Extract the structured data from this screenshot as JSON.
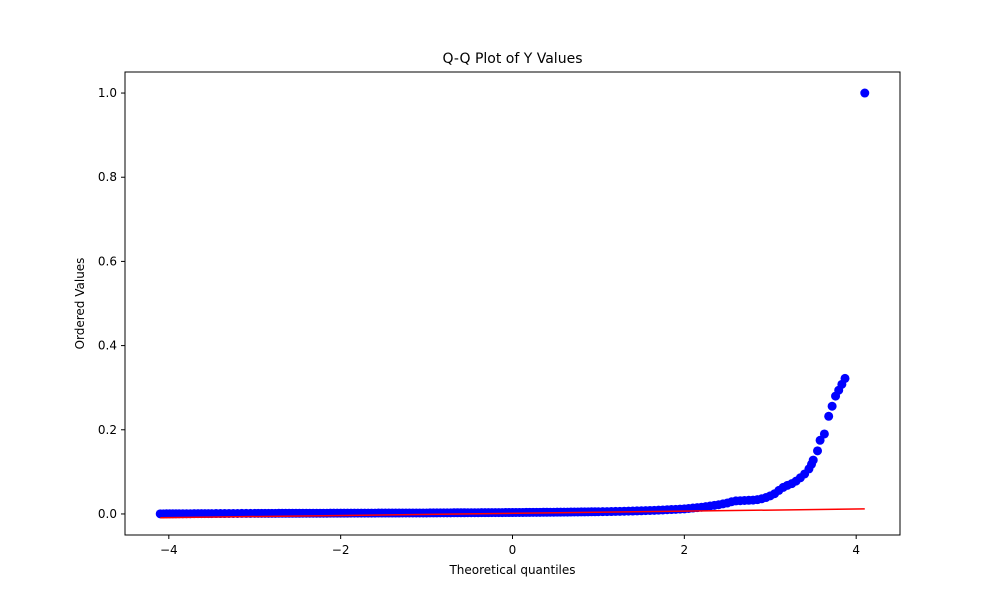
{
  "chart_data": {
    "type": "scatter",
    "title": "Q-Q Plot of Y Values",
    "xlabel": "Theoretical quantiles",
    "ylabel": "Ordered Values",
    "xlim": [
      -4.51,
      4.51
    ],
    "ylim": [
      -0.05,
      1.05
    ],
    "xticks": [
      -4,
      -2,
      0,
      2,
      4
    ],
    "xtick_labels": [
      "−4",
      "−2",
      "0",
      "2",
      "4"
    ],
    "yticks": [
      0.0,
      0.2,
      0.4,
      0.6,
      0.8,
      1.0
    ],
    "ytick_labels": [
      "0.0",
      "0.2",
      "0.4",
      "0.6",
      "0.8",
      "1.0"
    ],
    "grid": false,
    "legend": "none",
    "marker_color": "#0000ff",
    "line_color": "#ff0000",
    "fit_line": {
      "x": [
        -4.1,
        4.1
      ],
      "y": [
        -0.009,
        0.012
      ]
    },
    "points": [
      [
        -4.1,
        0.0003
      ],
      [
        -3.88,
        0.0005
      ],
      [
        -3.75,
        0.0006
      ],
      [
        -3.66,
        0.0007
      ],
      [
        -3.58,
        0.0008
      ],
      [
        -3.5,
        0.0009
      ],
      [
        -3.4,
        0.001
      ],
      [
        -3.3,
        0.0011
      ],
      [
        -3.2,
        0.0012
      ],
      [
        -3.1,
        0.0013
      ],
      [
        -3.0,
        0.0014
      ],
      [
        -2.8,
        0.0015
      ],
      [
        -2.6,
        0.0016
      ],
      [
        -2.4,
        0.0017
      ],
      [
        -2.2,
        0.0018
      ],
      [
        -2.0,
        0.0019
      ],
      [
        -1.8,
        0.002
      ],
      [
        -1.6,
        0.0021
      ],
      [
        -1.4,
        0.0022
      ],
      [
        -1.2,
        0.0023
      ],
      [
        -1.0,
        0.0024
      ],
      [
        -0.8,
        0.0026
      ],
      [
        -0.6,
        0.0028
      ],
      [
        -0.4,
        0.003
      ],
      [
        -0.2,
        0.0032
      ],
      [
        0.0,
        0.0034
      ],
      [
        0.2,
        0.0037
      ],
      [
        0.4,
        0.004
      ],
      [
        0.6,
        0.0044
      ],
      [
        0.8,
        0.0048
      ],
      [
        1.0,
        0.0053
      ],
      [
        1.1,
        0.0056
      ],
      [
        1.2,
        0.006
      ],
      [
        1.3,
        0.0065
      ],
      [
        1.4,
        0.007
      ],
      [
        1.5,
        0.0076
      ],
      [
        1.6,
        0.0083
      ],
      [
        1.7,
        0.009
      ],
      [
        1.8,
        0.01
      ],
      [
        1.9,
        0.011
      ],
      [
        2.0,
        0.012
      ],
      [
        2.1,
        0.014
      ],
      [
        2.2,
        0.016
      ],
      [
        2.3,
        0.019
      ],
      [
        2.4,
        0.022
      ],
      [
        2.5,
        0.026
      ],
      [
        2.55,
        0.029
      ],
      [
        2.6,
        0.031
      ],
      [
        2.7,
        0.032
      ],
      [
        2.8,
        0.033
      ],
      [
        2.85,
        0.034
      ],
      [
        2.9,
        0.036
      ],
      [
        2.95,
        0.039
      ],
      [
        3.0,
        0.043
      ],
      [
        3.05,
        0.048
      ],
      [
        3.1,
        0.056
      ],
      [
        3.15,
        0.063
      ],
      [
        3.2,
        0.068
      ],
      [
        3.25,
        0.072
      ],
      [
        3.3,
        0.078
      ],
      [
        3.35,
        0.086
      ],
      [
        3.4,
        0.095
      ],
      [
        3.45,
        0.107
      ],
      [
        3.48,
        0.118
      ],
      [
        3.5,
        0.128
      ],
      [
        3.55,
        0.15
      ],
      [
        3.58,
        0.175
      ],
      [
        3.63,
        0.19
      ],
      [
        3.68,
        0.232
      ],
      [
        3.76,
        0.28
      ],
      [
        3.87,
        0.322
      ],
      [
        4.1,
        1.0
      ]
    ]
  }
}
